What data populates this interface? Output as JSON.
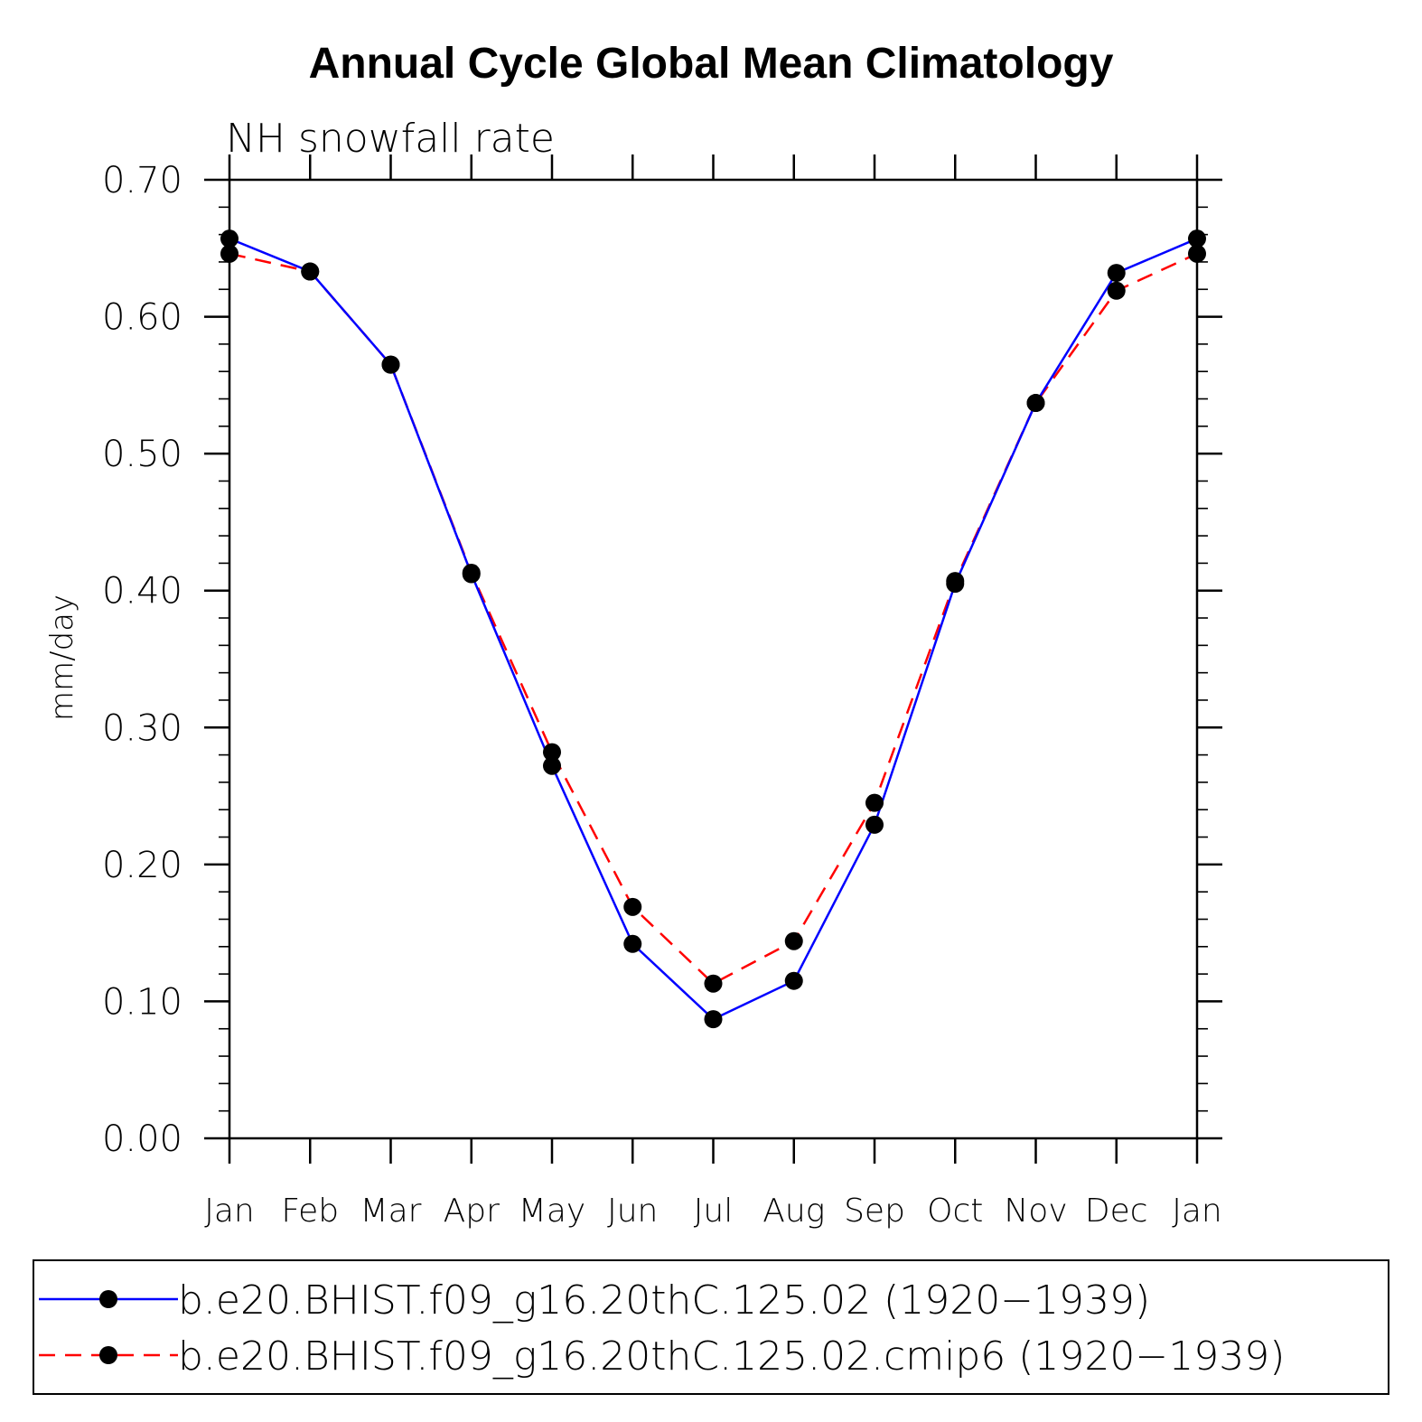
{
  "chart_data": {
    "type": "line",
    "title": "Annual Cycle Global Mean Climatology",
    "subtitle": "NH snowfall rate",
    "xlabel": "",
    "ylabel": "mm/day",
    "categories": [
      "Jan",
      "Feb",
      "Mar",
      "Apr",
      "May",
      "Jun",
      "Jul",
      "Aug",
      "Sep",
      "Oct",
      "Nov",
      "Dec",
      "Jan"
    ],
    "ylim": [
      0,
      0.7
    ],
    "yticks": [
      "0.00",
      "0.10",
      "0.20",
      "0.30",
      "0.40",
      "0.50",
      "0.60",
      "0.70"
    ],
    "series": [
      {
        "name": "b.e20.BHIST.f09_g16.20thC.125.02 (1920−1939)",
        "color": "#0000ff",
        "dash": "solid",
        "values": [
          0.657,
          0.633,
          0.565,
          0.412,
          0.272,
          0.142,
          0.087,
          0.115,
          0.229,
          0.405,
          0.537,
          0.632,
          0.657
        ]
      },
      {
        "name": "b.e20.BHIST.f09_g16.20thC.125.02.cmip6 (1920−1939)",
        "color": "#ff0000",
        "dash": "dashed",
        "values": [
          0.646,
          0.633,
          0.565,
          0.413,
          0.282,
          0.169,
          0.113,
          0.144,
          0.245,
          0.407,
          0.537,
          0.619,
          0.646
        ]
      }
    ],
    "legend_position": "bottom"
  }
}
